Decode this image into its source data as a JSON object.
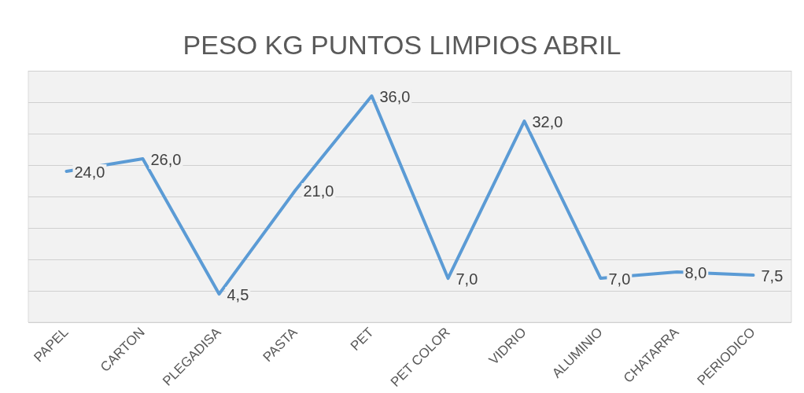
{
  "chart_data": {
    "type": "line",
    "title": "PESO KG PUNTOS LIMPIOS ABRIL",
    "categories": [
      "PAPEL",
      "CARTON",
      "PLEGADISA",
      "PASTA",
      "PET",
      "PET COLOR",
      "VIDRIO",
      "ALUMINIO",
      "CHATARRA",
      "PERIODICO"
    ],
    "series": [
      {
        "color": "#5b9bd5",
        "values": [
          24,
          26,
          4.5,
          21,
          36,
          7,
          32,
          7,
          8,
          7.5
        ],
        "value_labels": [
          "24,0",
          "26,0",
          "4,5",
          "21,0",
          "36,0",
          "7,0",
          "32,0",
          "7,0",
          "8,0",
          "7,5"
        ]
      }
    ],
    "ylim": [
      0,
      40
    ],
    "yticks": [
      {
        "value": 0,
        "label": null
      },
      {
        "value": 5,
        "label": null
      },
      {
        "value": 10,
        "label": null
      },
      {
        "value": 15,
        "label": null
      },
      {
        "value": 20,
        "label": null
      },
      {
        "value": 25,
        "label": null
      },
      {
        "value": 30,
        "label": null
      },
      {
        "value": 35,
        "label": null
      },
      {
        "value": 40,
        "label": null
      }
    ],
    "grid": "y",
    "legend": false,
    "marker": "none",
    "line_style": "solid",
    "tick_labels": "x"
  }
}
